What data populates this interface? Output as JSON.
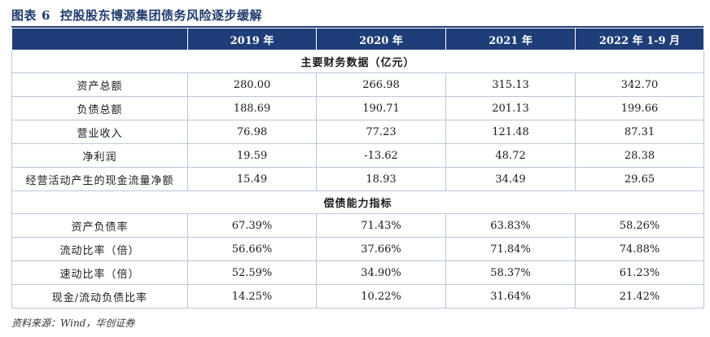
{
  "title": {
    "label": "图表",
    "number": "6",
    "text": "控股股东博源集团债务风险逐步缓解"
  },
  "columns": [
    "2019 年",
    "2020 年",
    "2021 年",
    "2022 年 1-9 月"
  ],
  "sections": [
    {
      "heading": "主要财务数据（亿元）",
      "rows": [
        {
          "label": "资产总额",
          "values": [
            "280.00",
            "266.98",
            "315.13",
            "342.70"
          ]
        },
        {
          "label": "负债总额",
          "values": [
            "188.69",
            "190.71",
            "201.13",
            "199.66"
          ]
        },
        {
          "label": "营业收入",
          "values": [
            "76.98",
            "77.23",
            "121.48",
            "87.31"
          ]
        },
        {
          "label": "净利润",
          "values": [
            "19.59",
            "-13.62",
            "48.72",
            "28.38"
          ]
        },
        {
          "label": "经营活动产生的现金流量净额",
          "values": [
            "15.49",
            "18.93",
            "34.49",
            "29.65"
          ]
        }
      ]
    },
    {
      "heading": "偿债能力指标",
      "rows": [
        {
          "label": "资产负债率",
          "values": [
            "67.39%",
            "71.43%",
            "63.83%",
            "58.26%"
          ]
        },
        {
          "label": "流动比率（倍）",
          "values": [
            "56.66%",
            "37.66%",
            "71.84%",
            "74.88%"
          ]
        },
        {
          "label": "速动比率（倍）",
          "values": [
            "52.59%",
            "34.90%",
            "58.37%",
            "61.23%"
          ]
        },
        {
          "label": "现金/流动负债比率",
          "values": [
            "14.25%",
            "10.22%",
            "31.64%",
            "21.42%"
          ]
        }
      ]
    }
  ],
  "source": "资料来源：Wind，华创证券"
}
